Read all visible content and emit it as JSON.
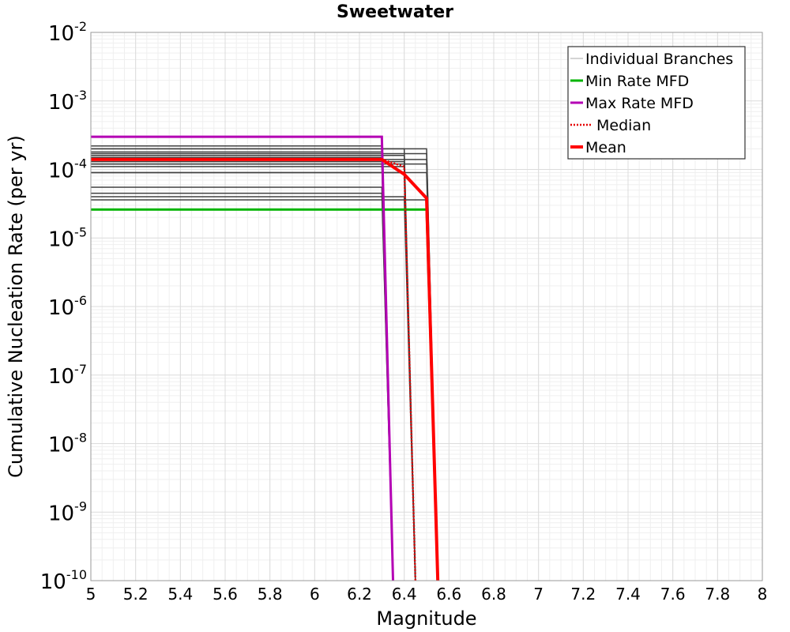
{
  "chart_data": {
    "type": "line",
    "title": "Sweetwater",
    "xlabel": "Magnitude",
    "ylabel": "Cumulative Nucleation Rate (per yr)",
    "xlim": [
      5,
      8
    ],
    "ylim": [
      1e-10,
      0.01
    ],
    "yscale": "log",
    "grid": true,
    "legend_position": "top-right",
    "x_ticks": [
      "5",
      "5.2",
      "5.4",
      "5.6",
      "5.8",
      "6",
      "6.2",
      "6.4",
      "6.6",
      "6.8",
      "7",
      "7.2",
      "7.4",
      "7.6",
      "7.8",
      "8"
    ],
    "y_ticks": [
      {
        "base": "10",
        "exp": "-10"
      },
      {
        "base": "10",
        "exp": "-9"
      },
      {
        "base": "10",
        "exp": "-8"
      },
      {
        "base": "10",
        "exp": "-7"
      },
      {
        "base": "10",
        "exp": "-6"
      },
      {
        "base": "10",
        "exp": "-5"
      },
      {
        "base": "10",
        "exp": "-4"
      },
      {
        "base": "10",
        "exp": "-3"
      },
      {
        "base": "10",
        "exp": "-2"
      }
    ],
    "legend": [
      {
        "label": "Individual Branches",
        "color": "#aaaaaa",
        "style": "thin"
      },
      {
        "label": "Min Rate MFD",
        "color": "#00b400",
        "style": "solid"
      },
      {
        "label": "Max Rate MFD",
        "color": "#b400b4",
        "style": "solid"
      },
      {
        "label": "Median",
        "color": "#e60000",
        "style": "dotted"
      },
      {
        "label": "Mean",
        "color": "#ff0000",
        "style": "thick"
      }
    ],
    "branches": [
      {
        "x": [
          5,
          6.3,
          6.35
        ],
        "y": [
          4.5e-05,
          4.5e-05,
          1e-10
        ]
      },
      {
        "x": [
          5,
          6.3,
          6.35
        ],
        "y": [
          5.5e-05,
          5.5e-05,
          1e-10
        ]
      },
      {
        "x": [
          5,
          6.3,
          6.35
        ],
        "y": [
          0.00012,
          0.00012,
          1e-10
        ]
      },
      {
        "x": [
          5,
          6.3,
          6.35
        ],
        "y": [
          0.00015,
          0.00015,
          1e-10
        ]
      },
      {
        "x": [
          5,
          6.3,
          6.35
        ],
        "y": [
          0.00018,
          0.00018,
          1e-10
        ]
      },
      {
        "x": [
          5,
          6.3,
          6.35
        ],
        "y": [
          0.00022,
          0.00022,
          1e-10
        ]
      },
      {
        "x": [
          5,
          6.4,
          6.45
        ],
        "y": [
          4e-05,
          4e-05,
          1e-10
        ]
      },
      {
        "x": [
          5,
          6.4,
          6.45
        ],
        "y": [
          9e-05,
          9e-05,
          1e-10
        ]
      },
      {
        "x": [
          5,
          6.4,
          6.45
        ],
        "y": [
          0.00011,
          0.00011,
          1e-10
        ]
      },
      {
        "x": [
          5,
          6.4,
          6.45
        ],
        "y": [
          0.00013,
          0.00013,
          1e-10
        ]
      },
      {
        "x": [
          5,
          6.4,
          6.45
        ],
        "y": [
          0.00016,
          0.00016,
          1e-10
        ]
      },
      {
        "x": [
          5,
          6.4,
          6.45
        ],
        "y": [
          0.0002,
          0.0002,
          1e-10
        ]
      },
      {
        "x": [
          5,
          6.5,
          6.55
        ],
        "y": [
          3.6e-05,
          3.6e-05,
          1e-10
        ]
      },
      {
        "x": [
          5,
          6.5,
          6.55
        ],
        "y": [
          9e-05,
          9e-05,
          1e-10
        ]
      },
      {
        "x": [
          5,
          6.5,
          6.55
        ],
        "y": [
          0.00012,
          0.00012,
          1e-10
        ]
      },
      {
        "x": [
          5,
          6.5,
          6.55
        ],
        "y": [
          0.00014,
          0.00014,
          1e-10
        ]
      },
      {
        "x": [
          5,
          6.5,
          6.55
        ],
        "y": [
          0.00017,
          0.00017,
          1e-10
        ]
      },
      {
        "x": [
          5,
          6.5,
          6.55
        ],
        "y": [
          0.0002,
          0.0002,
          1e-10
        ]
      }
    ],
    "series": [
      {
        "name": "Min Rate MFD",
        "color": "#00b400",
        "width": 3,
        "dash": "",
        "x": [
          5,
          6.5,
          6.55
        ],
        "y": [
          2.6e-05,
          2.6e-05,
          1e-10
        ]
      },
      {
        "name": "Max Rate MFD",
        "color": "#b400b4",
        "width": 3,
        "dash": "",
        "x": [
          5,
          6.3,
          6.35
        ],
        "y": [
          0.0003,
          0.0003,
          1e-10
        ]
      },
      {
        "name": "Median",
        "color": "#e60000",
        "width": 2.5,
        "dash": "2,2",
        "x": [
          5,
          6.3,
          6.4,
          6.45
        ],
        "y": [
          0.00014,
          0.00014,
          0.00011,
          1e-10
        ]
      },
      {
        "name": "Mean",
        "color": "#ff0000",
        "width": 4,
        "dash": "",
        "x": [
          5,
          6.3,
          6.4,
          6.5,
          6.55
        ],
        "y": [
          0.00014,
          0.00014,
          8.5e-05,
          3.8e-05,
          1e-10
        ]
      }
    ]
  }
}
